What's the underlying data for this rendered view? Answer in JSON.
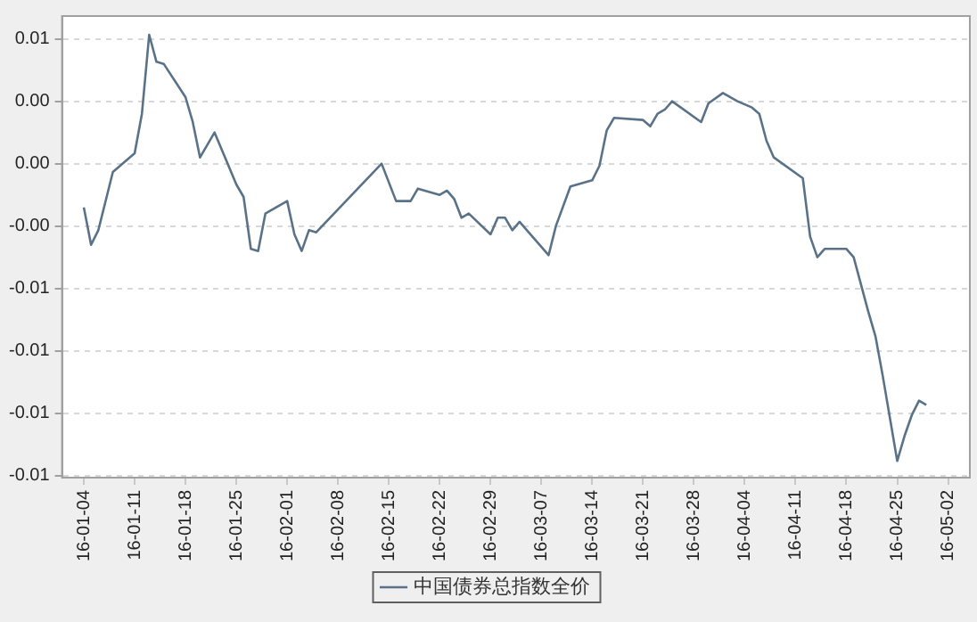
{
  "chart_data": {
    "type": "line",
    "x": [
      "--01-04",
      "--01-05",
      "--01-06",
      "--01-08",
      "--01-11",
      "--01-12",
      "--01-13",
      "--01-14",
      "--01-15",
      "--01-18",
      "--01-19",
      "--01-20",
      "--01-22",
      "--01-25",
      "--01-26",
      "--01-27",
      "--01-28",
      "--01-29",
      "--02-01",
      "--02-02",
      "--02-03",
      "--02-04",
      "--02-05",
      "--02-14",
      "--02-16",
      "--02-18",
      "--02-19",
      "--02-22",
      "--02-23",
      "--02-24",
      "--02-25",
      "--02-26",
      "--02-29",
      "--03-01",
      "--03-02",
      "--03-03",
      "--03-04",
      "--03-08",
      "--03-09",
      "--03-11",
      "--03-14",
      "--03-15",
      "--03-16",
      "--03-17",
      "--03-21",
      "--03-22",
      "--03-23",
      "--03-24",
      "--03-25",
      "--03-29",
      "--03-30",
      "--04-01",
      "--04-03",
      "--04-05",
      "--04-06",
      "--04-07",
      "--04-08",
      "--04-12",
      "--04-13",
      "--04-14",
      "--04-15",
      "--04-18",
      "--04-19",
      "--04-21",
      "--04-22",
      "--04-23",
      "--04-25",
      "--04-26",
      "--04-27",
      "--04-28",
      "--04-29"
    ],
    "series": [
      {
        "name": "中国债券总指数全价",
        "color": "#5a7288",
        "values": [
          -0.0011,
          -0.0029,
          -0.0022,
          0.0006,
          0.0015,
          0.0034,
          0.0072,
          0.0059,
          0.0058,
          0.0042,
          0.003,
          0.0013,
          0.0025,
          0.0,
          -0.0006,
          -0.0031,
          -0.0032,
          -0.0014,
          -0.0008,
          -0.0024,
          -0.0032,
          -0.0022,
          -0.0023,
          0.001,
          -0.0008,
          -0.0008,
          -0.0002,
          -0.0005,
          -0.0003,
          -0.0007,
          -0.0016,
          -0.0014,
          -0.0024,
          -0.0016,
          -0.0016,
          -0.0022,
          -0.0018,
          -0.0034,
          -0.002,
          -0.0001,
          0.0002,
          0.0009,
          0.0026,
          0.0032,
          0.0031,
          0.0028,
          0.0034,
          0.0036,
          0.004,
          0.003,
          0.0039,
          0.0044,
          0.004,
          0.0037,
          0.0034,
          0.0021,
          0.0013,
          0.0003,
          -0.0025,
          -0.0035,
          -0.0031,
          -0.0031,
          -0.0035,
          -0.0061,
          -0.0073,
          -0.0092,
          -0.0133,
          -0.0121,
          -0.0111,
          -0.0104,
          -0.0106
        ]
      }
    ],
    "xlim": [
      "--01-01",
      "--05-05"
    ],
    "xticks": [
      {
        "value": "--01-04",
        "label": "16-01-04"
      },
      {
        "value": "--01-11",
        "label": "16-01-11"
      },
      {
        "value": "--01-18",
        "label": "16-01-18"
      },
      {
        "value": "--01-25",
        "label": "16-01-25"
      },
      {
        "value": "--02-01",
        "label": "16-02-01"
      },
      {
        "value": "--02-08",
        "label": "16-02-08"
      },
      {
        "value": "--02-15",
        "label": "16-02-15"
      },
      {
        "value": "--02-22",
        "label": "16-02-22"
      },
      {
        "value": "--02-29",
        "label": "16-02-29"
      },
      {
        "value": "--03-07",
        "label": "16-03-07"
      },
      {
        "value": "--03-14",
        "label": "16-03-14"
      },
      {
        "value": "--03-21",
        "label": "16-03-21"
      },
      {
        "value": "--03-28",
        "label": "16-03-28"
      },
      {
        "value": "--04-04",
        "label": "16-04-04"
      },
      {
        "value": "--04-11",
        "label": "16-04-11"
      },
      {
        "value": "--04-18",
        "label": "16-04-18"
      },
      {
        "value": "--04-25",
        "label": "16-04-25"
      },
      {
        "value": "--05-02",
        "label": "16-05-02"
      }
    ],
    "ylim": [
      -0.0141,
      0.0081
    ],
    "yticks": [
      {
        "value": 0.007,
        "label": "0.01"
      },
      {
        "value": 0.004,
        "label": "0.00"
      },
      {
        "value": 0.001,
        "label": "0.00"
      },
      {
        "value": -0.002,
        "label": "-0.00"
      },
      {
        "value": -0.005,
        "label": "-0.01"
      },
      {
        "value": -0.008,
        "label": "-0.01"
      },
      {
        "value": -0.011,
        "label": "-0.01"
      },
      {
        "value": -0.014,
        "label": "-0.01"
      }
    ],
    "grid": "y",
    "legend": "bottom",
    "marker": "none",
    "line_style": "solid"
  }
}
